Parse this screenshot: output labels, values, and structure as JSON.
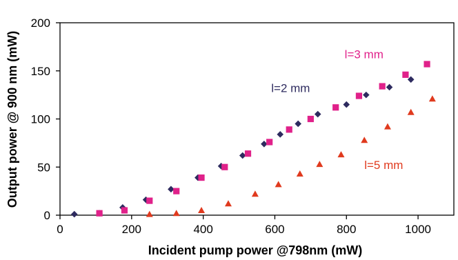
{
  "chart_data": {
    "type": "scatter",
    "xlabel": "Incident pump power @798nm (mW)",
    "ylabel": "Output power @ 900 nm (mW)",
    "xlim": [
      0,
      1100
    ],
    "ylim": [
      0,
      200
    ],
    "xticks": [
      0,
      200,
      400,
      600,
      800,
      1000
    ],
    "yticks": [
      0,
      50,
      100,
      150,
      200
    ],
    "grid": false,
    "series": [
      {
        "name": "l=2 mm",
        "marker": "diamond",
        "color": "#2e2b5f",
        "points": [
          [
            40,
            1
          ],
          [
            110,
            2
          ],
          [
            175,
            8
          ],
          [
            240,
            16
          ],
          [
            310,
            27
          ],
          [
            385,
            39
          ],
          [
            450,
            51
          ],
          [
            510,
            62
          ],
          [
            570,
            74
          ],
          [
            615,
            84
          ],
          [
            665,
            95
          ],
          [
            720,
            105
          ],
          [
            800,
            115
          ],
          [
            855,
            125
          ],
          [
            920,
            133
          ],
          [
            980,
            141
          ]
        ]
      },
      {
        "name": "l=3 mm",
        "marker": "square",
        "color": "#e0218a",
        "points": [
          [
            110,
            2
          ],
          [
            180,
            5
          ],
          [
            250,
            15
          ],
          [
            325,
            25
          ],
          [
            395,
            39
          ],
          [
            460,
            50
          ],
          [
            525,
            64
          ],
          [
            585,
            76
          ],
          [
            640,
            89
          ],
          [
            700,
            100
          ],
          [
            770,
            112
          ],
          [
            835,
            124
          ],
          [
            900,
            134
          ],
          [
            965,
            146
          ],
          [
            1025,
            157
          ]
        ]
      },
      {
        "name": "l=5 mm",
        "marker": "triangle",
        "color": "#e03a1e",
        "points": [
          [
            250,
            1
          ],
          [
            325,
            2
          ],
          [
            395,
            5
          ],
          [
            470,
            12
          ],
          [
            545,
            22
          ],
          [
            610,
            32
          ],
          [
            670,
            43
          ],
          [
            725,
            53
          ],
          [
            785,
            63
          ],
          [
            850,
            78
          ],
          [
            915,
            92
          ],
          [
            980,
            107
          ],
          [
            1040,
            121
          ]
        ]
      }
    ],
    "annotations": [
      {
        "series": 0,
        "text": "l=2 mm",
        "x": 590,
        "y": 128,
        "color": "#2e2b5f"
      },
      {
        "series": 1,
        "text": "l=3 mm",
        "x": 795,
        "y": 163,
        "color": "#e0218a"
      },
      {
        "series": 2,
        "text": "l=5 mm",
        "x": 850,
        "y": 48,
        "color": "#e03a1e"
      }
    ]
  }
}
